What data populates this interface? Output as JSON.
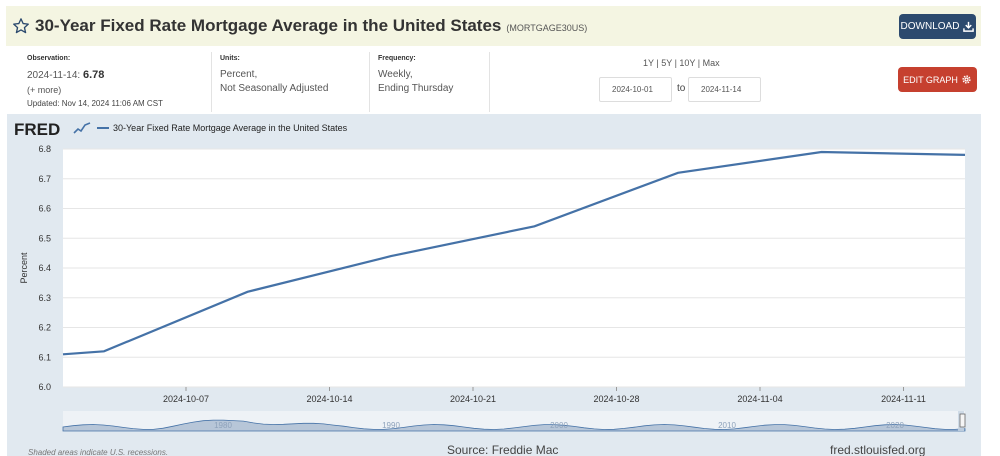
{
  "header": {
    "title": "30-Year Fixed Rate Mortgage Average in the United States",
    "series_id": "(MORTGAGE30US)",
    "download_label": "DOWNLOAD",
    "edit_graph_label": "EDIT GRAPH"
  },
  "meta": {
    "observation_label": "Observation:",
    "observation_date": "2024-11-14:",
    "observation_value": "6.78",
    "more_label": "(+ more)",
    "updated": "Updated: Nov 14, 2024 11:06 AM CST",
    "units_label": "Units:",
    "units_line1": "Percent,",
    "units_line2": "Not Seasonally Adjusted",
    "frequency_label": "Frequency:",
    "frequency_line1": "Weekly,",
    "frequency_line2": "Ending Thursday"
  },
  "date_range": {
    "quick": [
      "1Y",
      "5Y",
      "10Y",
      "Max"
    ],
    "separator": " | ",
    "start": "2024-10-01",
    "to_label": "to",
    "end": "2024-11-14"
  },
  "graph": {
    "logo": "FRED",
    "legend": "30-Year Fixed Rate Mortgage Average in the United States",
    "recession_note": "Shaded areas indicate U.S. recessions.",
    "source": "Source: Freddie Mac",
    "site": "fred.stlouisfed.org"
  },
  "chart_data": {
    "type": "line",
    "title": "30-Year Fixed Rate Mortgage Average in the United States",
    "ylabel": "Percent",
    "xlabel": "",
    "ylim": [
      6.0,
      6.8
    ],
    "yticks": [
      "6.0",
      "6.1",
      "6.2",
      "6.3",
      "6.4",
      "6.5",
      "6.6",
      "6.7",
      "6.8"
    ],
    "x_tick_labels": [
      "2024-10-07",
      "2024-10-14",
      "2024-10-21",
      "2024-10-28",
      "2024-11-04",
      "2024-11-11"
    ],
    "x_tick_days": [
      6,
      13,
      20,
      27,
      34,
      41
    ],
    "x_range_days": [
      0,
      44
    ],
    "series": [
      {
        "name": "30-Year Fixed Rate Mortgage Average in the United States",
        "color": "#4572a7",
        "x_days": [
          0,
          2,
          9,
          16,
          23,
          30,
          37,
          44
        ],
        "values": [
          6.11,
          6.12,
          6.32,
          6.44,
          6.54,
          6.72,
          6.79,
          6.78
        ]
      }
    ],
    "navigator_labels": [
      "1980",
      "1990",
      "2000",
      "2010",
      "2020"
    ]
  }
}
